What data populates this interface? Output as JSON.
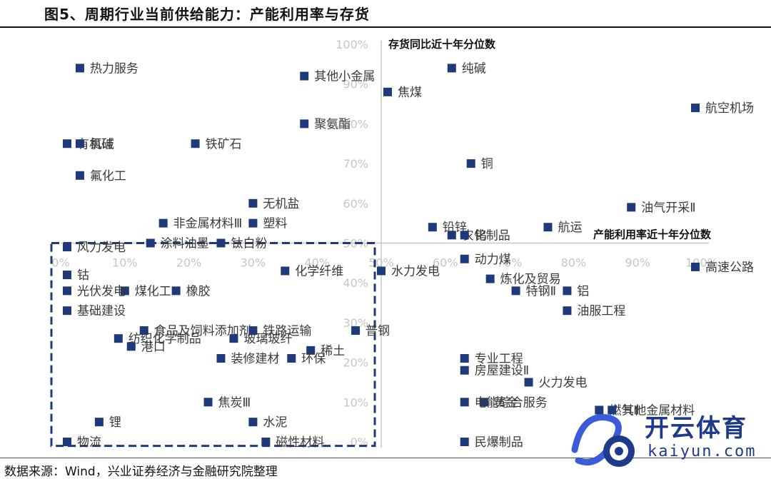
{
  "title": "图5、周期行业当前供给能力：产能利用率与存货",
  "source": "数据来源：Wind，兴业证券经济与金融研究院整理",
  "watermark": {
    "cn": "开云体育",
    "en": "kaiyun.com"
  },
  "colors": {
    "marker": "#1f3a7a",
    "axis": "#c8c8c8",
    "box": "#1f3a7a"
  },
  "chart_data": {
    "type": "scatter",
    "xlabel": "产能利用率近十年分位数",
    "ylabel": "存货同比近十年分位数",
    "xlim": [
      0,
      100
    ],
    "ylim": [
      0,
      100
    ],
    "x_ticks": [
      "0%",
      "10%",
      "20%",
      "30%",
      "40%",
      "50%",
      "60%",
      "70%",
      "80%",
      "90%",
      "100%"
    ],
    "y_ticks": [
      "0%",
      "10%",
      "20%",
      "30%",
      "40%",
      "50%",
      "60%",
      "70%",
      "80%",
      "90%",
      "100%"
    ],
    "highlight_region": {
      "x": [
        0,
        49
      ],
      "y": [
        -1,
        50
      ],
      "style": "dashed"
    },
    "points": [
      {
        "name": "热力服务",
        "x": 3,
        "y": 94
      },
      {
        "name": "有机硅",
        "x": 1,
        "y": 75
      },
      {
        "name": "氯碱",
        "x": 3,
        "y": 75
      },
      {
        "name": "铁矿石",
        "x": 21,
        "y": 75
      },
      {
        "name": "聚氨酯",
        "x": 38,
        "y": 80
      },
      {
        "name": "氟化工",
        "x": 3,
        "y": 67
      },
      {
        "name": "无机盐",
        "x": 30,
        "y": 60
      },
      {
        "name": "非金属材料Ⅲ",
        "x": 16,
        "y": 55
      },
      {
        "name": "塑料",
        "x": 30,
        "y": 55
      },
      {
        "name": "涂料油墨",
        "x": 14,
        "y": 50
      },
      {
        "name": "钛白粉",
        "x": 25,
        "y": 50
      },
      {
        "name": "纯碱",
        "x": 61,
        "y": 94
      },
      {
        "name": "焦煤",
        "x": 51,
        "y": 88
      },
      {
        "name": "其他小金属",
        "x": 38,
        "y": 92
      },
      {
        "name": "航空机场",
        "x": 99,
        "y": 84
      },
      {
        "name": "铜",
        "x": 64,
        "y": 70
      },
      {
        "name": "航运",
        "x": 76,
        "y": 54
      },
      {
        "name": "油气开采Ⅱ",
        "x": 89,
        "y": 59
      },
      {
        "name": "铅锌",
        "x": 58,
        "y": 54
      },
      {
        "name": "农化制品",
        "x": 61,
        "y": 52
      },
      {
        "name": "钨",
        "x": 63,
        "y": 52
      },
      {
        "name": "风力发电",
        "x": 1,
        "y": 49
      },
      {
        "name": "化学纤维",
        "x": 35,
        "y": 43
      },
      {
        "name": "动力煤",
        "x": 63,
        "y": 46
      },
      {
        "name": "水力发电",
        "x": 50,
        "y": 43
      },
      {
        "name": "煤化工",
        "x": 10,
        "y": 38
      },
      {
        "name": "钴",
        "x": 1,
        "y": 42
      },
      {
        "name": "橡胶",
        "x": 18,
        "y": 38
      },
      {
        "name": "光伏发电",
        "x": 1,
        "y": 38
      },
      {
        "name": "炼化及贸易",
        "x": 67,
        "y": 41
      },
      {
        "name": "特钢Ⅱ",
        "x": 71,
        "y": 38
      },
      {
        "name": "铝",
        "x": 79,
        "y": 38
      },
      {
        "name": "高速公路",
        "x": 99,
        "y": 44
      },
      {
        "name": "油服工程",
        "x": 79,
        "y": 33
      },
      {
        "name": "基础建设",
        "x": 1,
        "y": 33
      },
      {
        "name": "食品及饲料添加剂",
        "x": 13,
        "y": 28
      },
      {
        "name": "铁路运输",
        "x": 30,
        "y": 28
      },
      {
        "name": "普钢",
        "x": 46,
        "y": 28
      },
      {
        "name": "纺织化学制品",
        "x": 9,
        "y": 26
      },
      {
        "name": "玻璃玻纤",
        "x": 27,
        "y": 26
      },
      {
        "name": "稀土",
        "x": 39,
        "y": 23
      },
      {
        "name": "港口",
        "x": 11,
        "y": 24
      },
      {
        "name": "装修建材",
        "x": 25,
        "y": 21
      },
      {
        "name": "环保",
        "x": 36,
        "y": 21
      },
      {
        "name": "专业工程",
        "x": 63,
        "y": 21
      },
      {
        "name": "房屋建设Ⅱ",
        "x": 63,
        "y": 18
      },
      {
        "name": "火力发电",
        "x": 73,
        "y": 15
      },
      {
        "name": "焦炭Ⅲ",
        "x": 23,
        "y": 10
      },
      {
        "name": "黄金",
        "x": 66,
        "y": 10
      },
      {
        "name": "电能综合服务",
        "x": 63,
        "y": 10
      },
      {
        "name": "燃气Ⅱ",
        "x": 84,
        "y": 8
      },
      {
        "name": "锂",
        "x": 6,
        "y": 5
      },
      {
        "name": "水泥",
        "x": 30,
        "y": 5
      },
      {
        "name": "其他金属材料",
        "x": 86,
        "y": 8
      },
      {
        "name": "物流",
        "x": 1,
        "y": 0
      },
      {
        "name": "磁性材料",
        "x": 32,
        "y": 0
      },
      {
        "name": "民爆制品",
        "x": 63,
        "y": 0
      }
    ]
  }
}
